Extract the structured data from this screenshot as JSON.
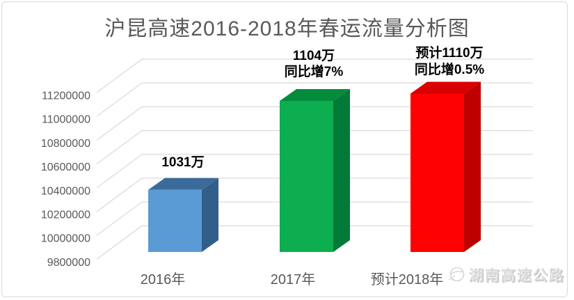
{
  "page": {
    "background": "#ffffff",
    "frame_border_color": "#d9d9d9"
  },
  "chart_data": {
    "type": "bar",
    "projection": "3d",
    "title": "沪昆高速2016-2018年春运流量分析图",
    "title_color": "#595959",
    "categories": [
      "2016年",
      "2017年",
      "预计2018年"
    ],
    "values": [
      10310000,
      11040000,
      11100000
    ],
    "bar_labels": [
      {
        "lines": [
          "1031万"
        ]
      },
      {
        "lines": [
          "1104万",
          "同比增7%"
        ]
      },
      {
        "lines": [
          "预计1110万",
          "同比增0.5%"
        ]
      }
    ],
    "bar_colors": [
      {
        "front": "#5B9BD5",
        "top": "#3C6B9B",
        "side": "#325F8A"
      },
      {
        "front": "#0CAE4F",
        "top": "#048C3D",
        "side": "#007A36"
      },
      {
        "front": "#FE0101",
        "top": "#D80000",
        "side": "#BE0000"
      }
    ],
    "y_ticks": [
      "11200000",
      "11000000",
      "10800000",
      "10600000",
      "10400000",
      "10200000",
      "10000000",
      "9800000"
    ],
    "ylim": [
      9800000,
      11200000
    ],
    "grid": true,
    "legend": false,
    "xlabel": "",
    "ylabel": "",
    "gridline_color": "#d9d9d9",
    "axis_text_color": "#595959",
    "label_text_color": "#000000"
  },
  "watermark": {
    "text": "湖南高速公路",
    "icon": "expressway-logo-icon",
    "color": "#dadada"
  }
}
